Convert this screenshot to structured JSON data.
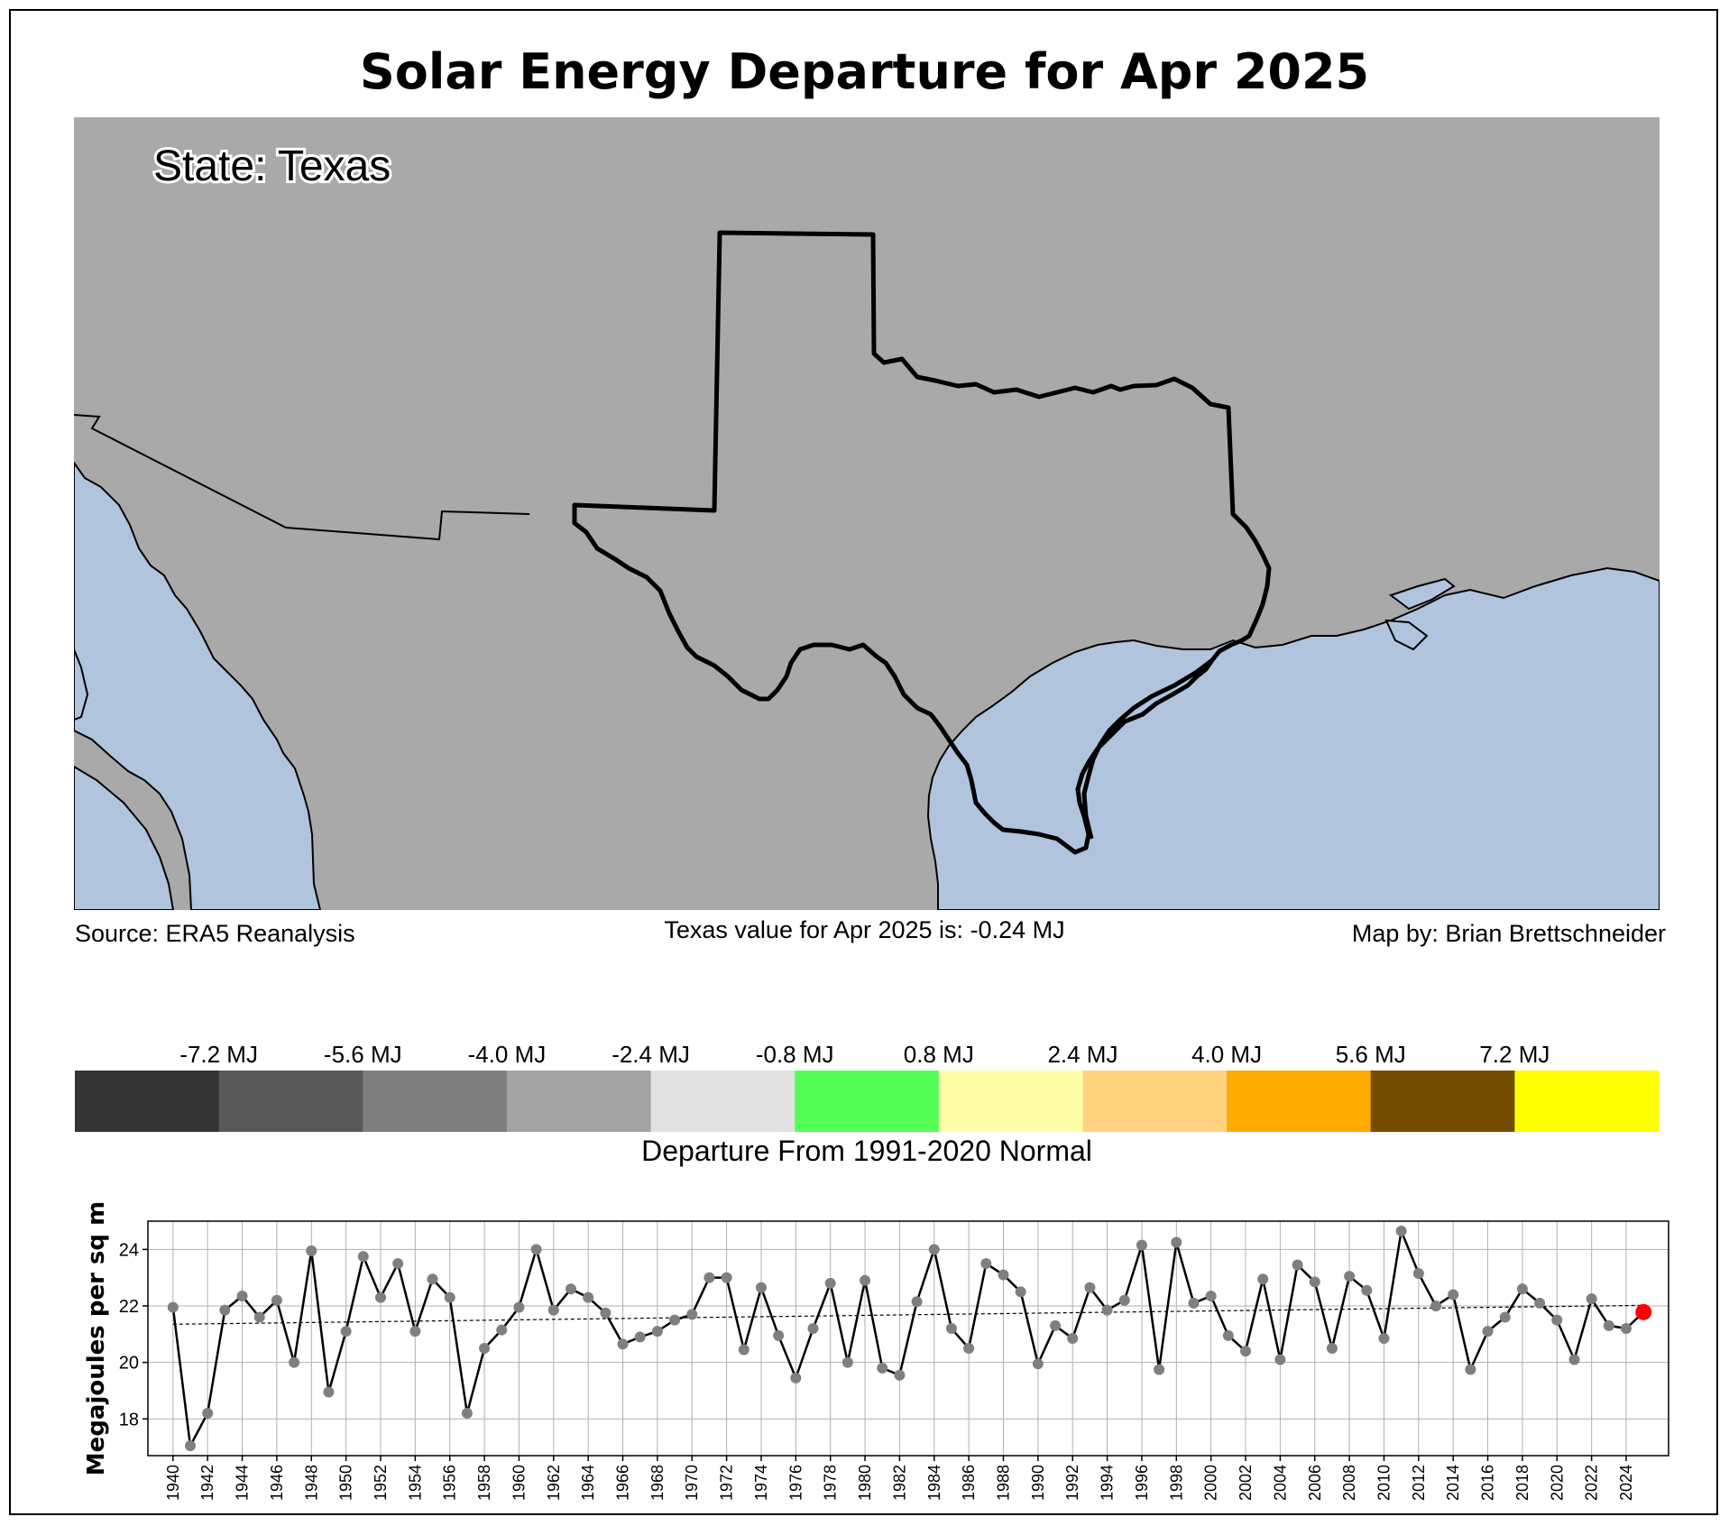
{
  "title": "Solar Energy Departure for Apr 2025",
  "map": {
    "state_label": "State: Texas",
    "colors": {
      "land": "#a9a9a9",
      "water": "#b0c4de",
      "border": "#000000"
    }
  },
  "footer": {
    "source": "Source: ERA5 Reanalysis",
    "value_note": "Texas value for Apr 2025 is: -0.24 MJ",
    "credit": "Map by: Brian Brettschneider"
  },
  "legend": {
    "ticks": [
      "-7.2 MJ",
      "-5.6 MJ",
      "-4.0 MJ",
      "-2.4 MJ",
      "-0.8 MJ",
      "0.8 MJ",
      "2.4 MJ",
      "4.0 MJ",
      "5.6 MJ",
      "7.2 MJ"
    ],
    "colors": [
      "#333333",
      "#595959",
      "#7f7f7f",
      "#a3a3a3",
      "#e1e1e1",
      "#55ff55",
      "#ffffaa",
      "#ffd27f",
      "#ffaa00",
      "#734c00",
      "#ffff00"
    ],
    "label": "Departure From 1991-2020 Normal"
  },
  "chart_data": {
    "type": "line",
    "ylabel": "Megajoules per sq m",
    "xlabel": "",
    "ylim": [
      16.7,
      25.0
    ],
    "yticks": [
      18,
      20,
      22,
      24
    ],
    "xticks": [
      1940,
      1942,
      1944,
      1946,
      1948,
      1950,
      1952,
      1954,
      1956,
      1958,
      1960,
      1962,
      1964,
      1966,
      1968,
      1970,
      1972,
      1974,
      1976,
      1978,
      1980,
      1982,
      1984,
      1986,
      1988,
      1990,
      1992,
      1994,
      1996,
      1998,
      2000,
      2002,
      2004,
      2006,
      2008,
      2010,
      2012,
      2014,
      2016,
      2018,
      2020,
      2022,
      2024
    ],
    "grid": true,
    "x": [
      1940,
      1941,
      1942,
      1943,
      1944,
      1945,
      1946,
      1947,
      1948,
      1949,
      1950,
      1951,
      1952,
      1953,
      1954,
      1955,
      1956,
      1957,
      1958,
      1959,
      1960,
      1961,
      1962,
      1963,
      1964,
      1965,
      1966,
      1967,
      1968,
      1969,
      1970,
      1971,
      1972,
      1973,
      1974,
      1975,
      1976,
      1977,
      1978,
      1979,
      1980,
      1981,
      1982,
      1983,
      1984,
      1985,
      1986,
      1987,
      1988,
      1989,
      1990,
      1991,
      1992,
      1993,
      1994,
      1995,
      1996,
      1997,
      1998,
      1999,
      2000,
      2001,
      2002,
      2003,
      2004,
      2005,
      2006,
      2007,
      2008,
      2009,
      2010,
      2011,
      2012,
      2013,
      2014,
      2015,
      2016,
      2017,
      2018,
      2019,
      2020,
      2021,
      2022,
      2023,
      2024,
      2025
    ],
    "series": [
      {
        "values": [
          21.95,
          17.05,
          18.2,
          21.85,
          22.35,
          21.6,
          22.2,
          20.0,
          23.95,
          18.95,
          21.1,
          23.75,
          22.3,
          23.5,
          21.1,
          22.95,
          22.3,
          18.2,
          20.5,
          21.15,
          21.95,
          24.0,
          21.85,
          22.6,
          22.3,
          21.75,
          20.65,
          20.9,
          21.1,
          21.5,
          21.7,
          23.0,
          23.0,
          20.45,
          22.65,
          20.95,
          19.45,
          21.2,
          22.8,
          20.0,
          22.9,
          19.8,
          19.55,
          22.15,
          24.0,
          21.2,
          20.5,
          23.5,
          23.1,
          22.5,
          19.95,
          21.3,
          20.85,
          22.65,
          21.85,
          22.2,
          24.15,
          19.75,
          24.25,
          22.1,
          22.35,
          20.95,
          20.4,
          22.95,
          20.1,
          23.45,
          22.85,
          20.5,
          23.05,
          22.55,
          20.85,
          24.65,
          23.15,
          22.0,
          22.4,
          19.75,
          21.1,
          21.6,
          22.6,
          22.1,
          21.5,
          20.1,
          22.25,
          21.3,
          21.2,
          21.78
        ]
      }
    ],
    "trend": [
      [
        1940,
        21.35
      ],
      [
        2025,
        22.02
      ]
    ],
    "colors": {
      "line": "#000000",
      "marker": "#7f7f7f",
      "latest": "#ff0000"
    }
  }
}
